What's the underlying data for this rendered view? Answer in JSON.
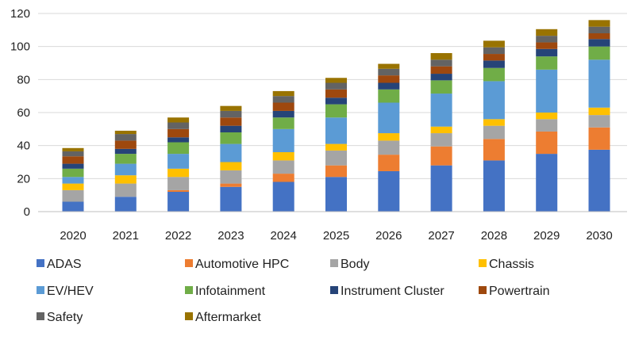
{
  "chart_data": {
    "type": "bar",
    "stacked": true,
    "title": "",
    "xlabel": "",
    "ylabel": "",
    "ylim": [
      0,
      120
    ],
    "yticks": [
      0,
      20,
      40,
      60,
      80,
      100,
      120
    ],
    "grid": true,
    "legend_position": "bottom",
    "categories": [
      "2020",
      "2021",
      "2022",
      "2023",
      "2024",
      "2025",
      "2026",
      "2027",
      "2028",
      "2029",
      "2030"
    ],
    "series": [
      {
        "name": "ADAS",
        "color": "#4472C4",
        "values": [
          6,
          9,
          12,
          15,
          18,
          21,
          24.5,
          28,
          31,
          35,
          37.5
        ]
      },
      {
        "name": "Automotive HPC",
        "color": "#ED7D31",
        "values": [
          0,
          0,
          1,
          2,
          5,
          7,
          10,
          11.5,
          13,
          13.5,
          13.5
        ]
      },
      {
        "name": "Body",
        "color": "#A5A5A5",
        "values": [
          7,
          8,
          8,
          8,
          8,
          9,
          8.5,
          8,
          8,
          7.5,
          7.5
        ]
      },
      {
        "name": "Chassis",
        "color": "#FFC000",
        "values": [
          4,
          5,
          5,
          5,
          5,
          4,
          4.5,
          4,
          4,
          4,
          4.5
        ]
      },
      {
        "name": "EV/HEV",
        "color": "#5B9BD5",
        "values": [
          4,
          7,
          9,
          11,
          14,
          16,
          18.5,
          20,
          23,
          26,
          29
        ]
      },
      {
        "name": "Infotainment",
        "color": "#70AD47",
        "values": [
          5,
          6,
          7,
          7,
          7,
          8,
          8,
          8,
          8,
          8,
          8
        ]
      },
      {
        "name": "Instrument Cluster",
        "color": "#264478",
        "values": [
          3,
          3,
          3,
          4,
          4,
          4,
          4,
          4,
          4.5,
          4.5,
          4.5
        ]
      },
      {
        "name": "Powertrain",
        "color": "#9E480E",
        "values": [
          4.5,
          5,
          5,
          5,
          5,
          5,
          4.5,
          4.5,
          4,
          4,
          3.5
        ]
      },
      {
        "name": "Safety",
        "color": "#636363",
        "values": [
          3,
          4,
          4,
          4,
          4,
          4,
          4,
          4,
          4,
          4,
          4
        ]
      },
      {
        "name": "Aftermarket",
        "color": "#997300",
        "values": [
          2,
          2,
          3,
          3,
          3,
          3,
          3,
          4,
          4,
          4,
          4
        ]
      }
    ]
  }
}
